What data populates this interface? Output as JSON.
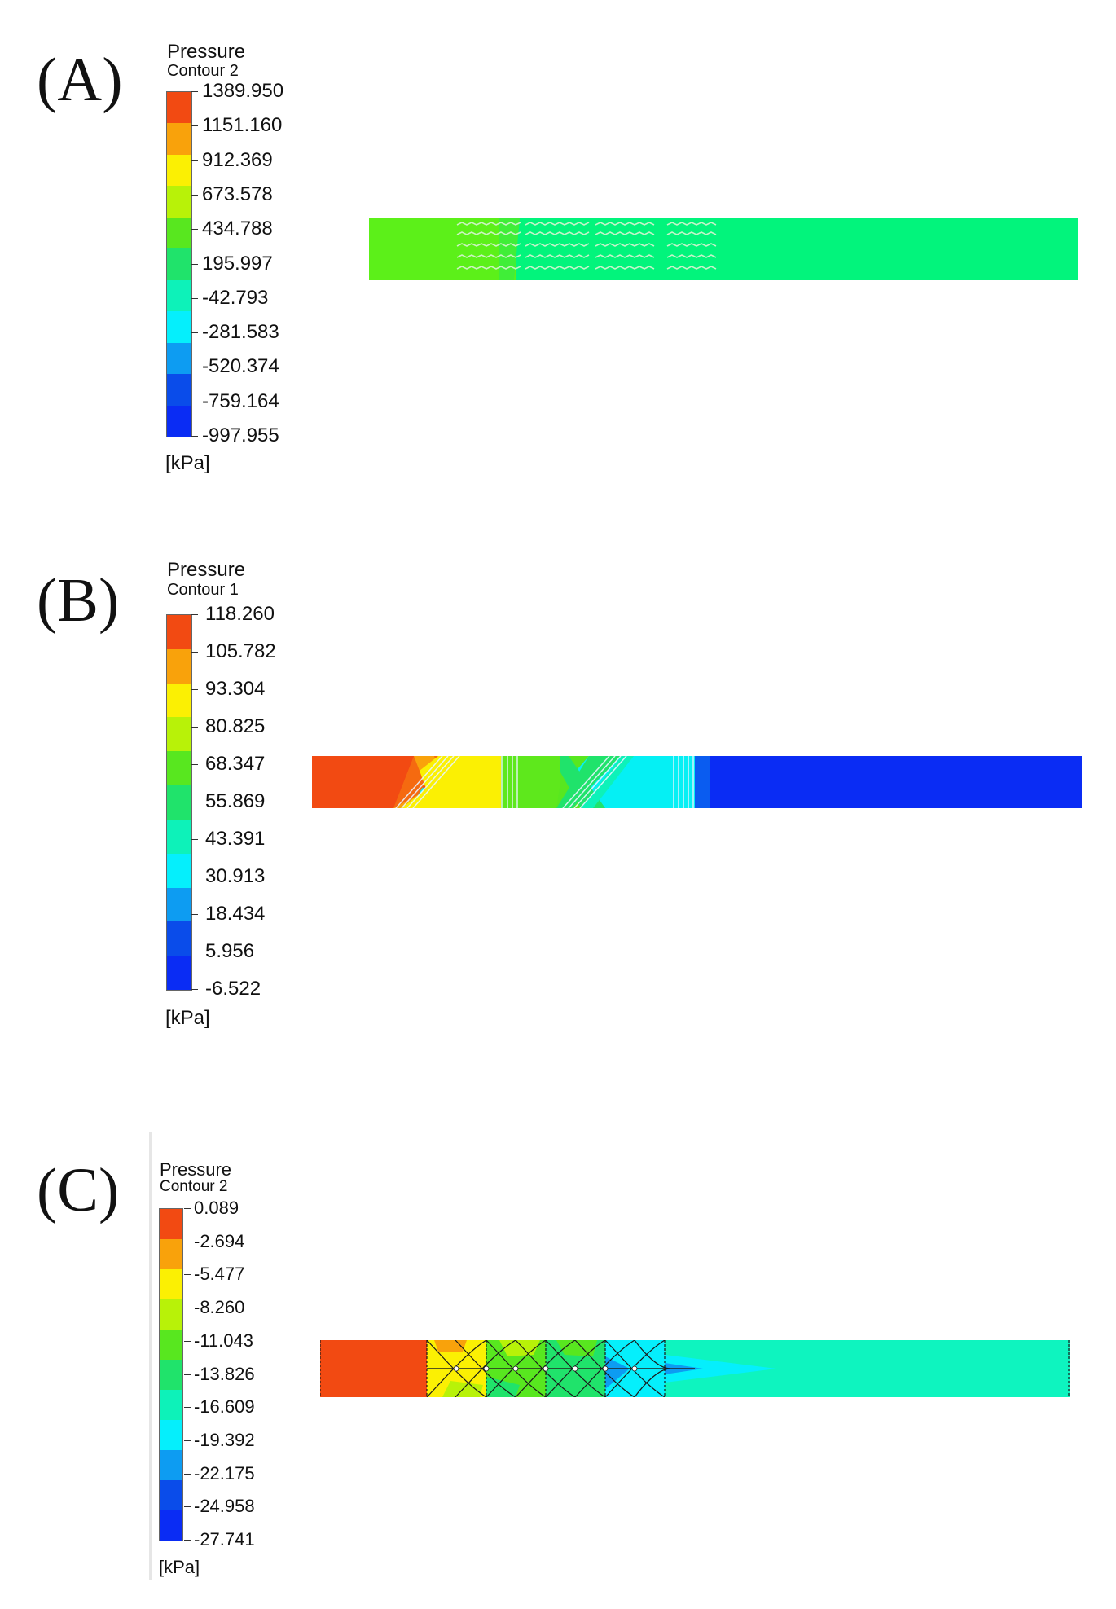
{
  "panels": [
    {
      "label": "(A)",
      "legend": {
        "title": "Pressure",
        "subtitle": "Contour 2",
        "ticks": [
          "1389.950",
          "1151.160",
          "912.369",
          "673.578",
          "434.788",
          "195.997",
          "-42.793",
          "-281.583",
          "-520.374",
          "-759.164",
          "-997.955"
        ],
        "unit": "[kPa]"
      }
    },
    {
      "label": "(B)",
      "legend": {
        "title": "Pressure",
        "subtitle": "Contour 1",
        "ticks": [
          "118.260",
          "105.782",
          "93.304",
          "80.825",
          "68.347",
          "55.869",
          "43.391",
          "30.913",
          "18.434",
          "5.956",
          "-6.522"
        ],
        "unit": "[kPa]"
      }
    },
    {
      "label": "(C)",
      "legend": {
        "title": "Pressure",
        "subtitle": "Contour 2",
        "ticks": [
          "0.089",
          "-2.694",
          "-5.477",
          "-8.260",
          "-11.043",
          "-13.826",
          "-16.609",
          "-19.392",
          "-22.175",
          "-24.958",
          "-27.741"
        ],
        "unit": "[kPa]"
      }
    }
  ],
  "colormap": [
    "#f24a12",
    "#f9a20b",
    "#fbf003",
    "#b8f208",
    "#58e71f",
    "#20e36b",
    "#0df2b9",
    "#05effc",
    "#0d9cf2",
    "#0a4cea",
    "#0a2cf4"
  ]
}
